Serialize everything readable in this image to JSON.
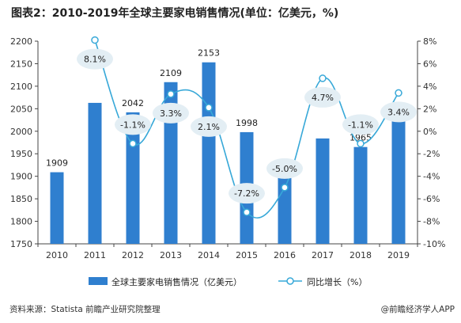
{
  "header": {
    "title": "图表2：2010-2019年全球主要家电销售情况(单位：亿美元，%)"
  },
  "colors": {
    "bar": "#2f7fcf",
    "line": "#37a8d8",
    "bubble": "#e3eef4",
    "marker_fill": "#ffffff",
    "axis": "#444444"
  },
  "chart_data": {
    "type": "bar+line",
    "categories": [
      "2010",
      "2011",
      "2012",
      "2013",
      "2014",
      "2015",
      "2016",
      "2017",
      "2018",
      "2019"
    ],
    "series": [
      {
        "name": "全球主要家电销售情况（亿美元）",
        "type": "bar",
        "axis": "left",
        "values": [
          1909,
          2063,
          2042,
          2109,
          2153,
          1998,
          1898,
          1984,
          1965,
          2031
        ],
        "labels": [
          "1909",
          "",
          "2042",
          "2109",
          "2153",
          "1998",
          "1898",
          "",
          "1965",
          "2031"
        ]
      },
      {
        "name": "同比增长（%）",
        "type": "line",
        "axis": "right",
        "values": [
          null,
          8.1,
          -1.1,
          3.3,
          2.1,
          -7.2,
          -5.0,
          4.7,
          -1.1,
          3.4
        ],
        "labels": [
          "",
          "8.1%",
          "-1.1%",
          "3.3%",
          "2.1%",
          "-7.2%",
          "-5.0%",
          "4.7%",
          "-1.1%",
          "3.4%"
        ]
      }
    ],
    "y_left": {
      "min": 1750,
      "max": 2200,
      "ticks": [
        "1750",
        "1800",
        "1850",
        "1900",
        "1950",
        "2000",
        "2050",
        "2100",
        "2150",
        "2200"
      ]
    },
    "y_right": {
      "min": -10,
      "max": 8,
      "ticks": [
        "-10%",
        "-8%",
        "-6%",
        "-4%",
        "-2%",
        "0%",
        "2%",
        "4%",
        "6%",
        "8%"
      ]
    },
    "grid": false,
    "legend": {
      "position": "bottom",
      "items": [
        "全球主要家电销售情况（亿美元）",
        "同比增长（%）"
      ]
    }
  },
  "footer": {
    "source": "资料来源：Statista 前瞻产业研究院整理",
    "brand": "@前瞻经济学人APP"
  }
}
